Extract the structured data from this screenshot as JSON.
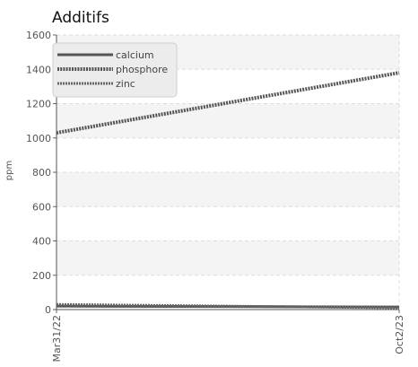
{
  "chart_data": {
    "type": "line",
    "title": "Additifs",
    "xlabel": "",
    "ylabel": "ppm",
    "x_ticks": [
      "Mar31/22",
      "Oct2/23"
    ],
    "y_ticks": [
      "0",
      "200",
      "400",
      "600",
      "800",
      "1000",
      "1200",
      "1400",
      "1600"
    ],
    "ylim": [
      0,
      1600
    ],
    "grid": true,
    "legend_position": "top-left",
    "x": [
      "Mar31/22",
      "Oct2/23"
    ],
    "series": [
      {
        "name": "calcium",
        "values": [
          20,
          15
        ],
        "color": "#555555",
        "style": "solid"
      },
      {
        "name": "phosphore",
        "values": [
          1030,
          1380
        ],
        "color": "#555555",
        "style": "dotted"
      },
      {
        "name": "zinc",
        "values": [
          30,
          10
        ],
        "color": "#666666",
        "style": "dashed"
      }
    ]
  }
}
